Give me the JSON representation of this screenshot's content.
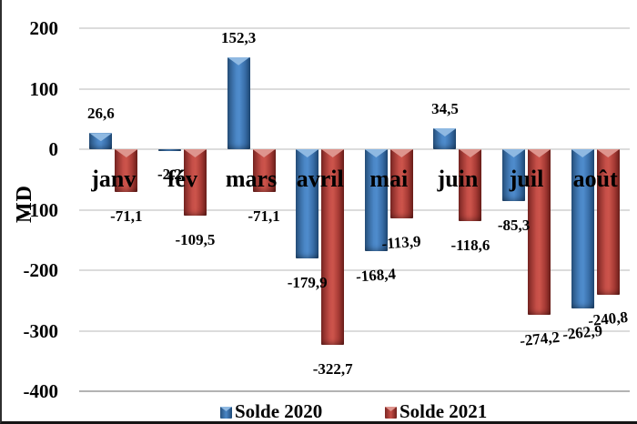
{
  "chart_data": {
    "type": "bar",
    "title": "",
    "ylabel": "MD",
    "xlabel": "",
    "categories": [
      "janv",
      "fév",
      "mars",
      "avril",
      "mai",
      "juin",
      "juil",
      "août"
    ],
    "series": [
      {
        "name": "Solde 2020",
        "color": "#3F7BBE",
        "values": [
          26.6,
          -2.2,
          152.3,
          -179.9,
          -168.4,
          34.5,
          -85.3,
          -262.9
        ]
      },
      {
        "name": "Solde 2021",
        "color": "#C2453F",
        "values": [
          -71.1,
          -109.5,
          -71.1,
          -322.7,
          -113.9,
          -118.6,
          -274.2,
          -240.8
        ]
      }
    ],
    "y_ticks": [
      200,
      100,
      0,
      -100,
      -200,
      -300,
      -400
    ],
    "ylim": [
      -400,
      200
    ],
    "grid": true,
    "legend_position": "bottom",
    "decimal_separator": ","
  },
  "legend": {
    "items": [
      {
        "label": "Solde 2020",
        "color": "#3F7BBE"
      },
      {
        "label": "Solde 2021",
        "color": "#C2453F"
      }
    ]
  }
}
